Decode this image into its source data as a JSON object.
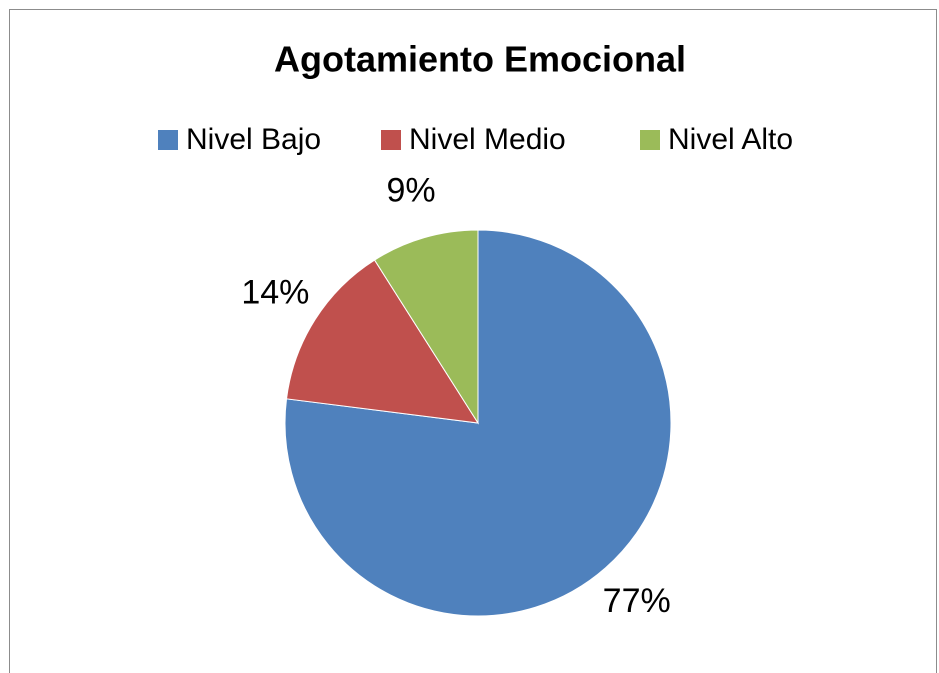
{
  "chart_data": {
    "type": "pie",
    "title": "Agotamiento Emocional",
    "categories": [
      "Nivel Bajo",
      "Nivel Medio",
      "Nivel Alto"
    ],
    "values": [
      77,
      14,
      9
    ],
    "value_labels": [
      "77%",
      "14%",
      "9%"
    ],
    "colors": [
      "#4f81bd",
      "#c0504d",
      "#9bbb59"
    ],
    "legend": "top"
  }
}
